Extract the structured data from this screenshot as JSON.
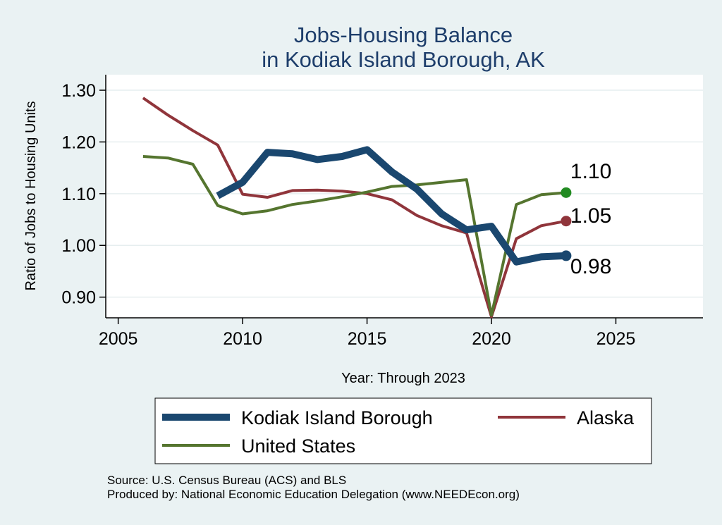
{
  "chart_data": {
    "type": "line",
    "title": [
      "Jobs-Housing Balance",
      "in Kodiak Island Borough, AK"
    ],
    "xlabel": "Year: Through 2023",
    "ylabel": "Ratio of Jobs to Housing Units",
    "xlim": [
      2004.5,
      2028.5
    ],
    "ylim": [
      0.86,
      1.33
    ],
    "xticks": [
      2005,
      2010,
      2015,
      2020,
      2025
    ],
    "yticks": [
      0.9,
      1.0,
      1.1,
      1.2,
      1.3
    ],
    "ytick_labels": [
      "0.90",
      "1.00",
      "1.10",
      "1.20",
      "1.30"
    ],
    "grid": true,
    "legend_position": "bottom",
    "series": [
      {
        "name": "Kodiak Island Borough",
        "color": "#1a476f",
        "x": [
          2009,
          2010,
          2011,
          2012,
          2013,
          2014,
          2015,
          2016,
          2017,
          2018,
          2019,
          2020,
          2021,
          2022,
          2023
        ],
        "y": [
          1.096,
          1.122,
          1.18,
          1.177,
          1.166,
          1.172,
          1.185,
          1.142,
          1.109,
          1.061,
          1.03,
          1.037,
          0.968,
          0.978,
          0.98
        ],
        "end_label": "0.98"
      },
      {
        "name": "Alaska",
        "color": "#90353b",
        "x": [
          2006,
          2007,
          2008,
          2009,
          2010,
          2011,
          2012,
          2013,
          2014,
          2015,
          2016,
          2017,
          2018,
          2019,
          2020,
          2021,
          2022,
          2023
        ],
        "y": [
          1.285,
          1.252,
          1.222,
          1.194,
          1.099,
          1.093,
          1.106,
          1.107,
          1.105,
          1.1,
          1.088,
          1.058,
          1.038,
          1.024,
          0.862,
          1.013,
          1.038,
          1.047
        ],
        "end_label": "1.05"
      },
      {
        "name": "United States",
        "color": "#55752f",
        "x": [
          2006,
          2007,
          2008,
          2009,
          2010,
          2011,
          2012,
          2013,
          2014,
          2015,
          2016,
          2017,
          2018,
          2019,
          2020,
          2021,
          2022,
          2023
        ],
        "y": [
          1.172,
          1.169,
          1.157,
          1.077,
          1.061,
          1.067,
          1.079,
          1.086,
          1.094,
          1.103,
          1.114,
          1.117,
          1.122,
          1.127,
          0.865,
          1.079,
          1.098,
          1.102
        ],
        "end_label": "1.10"
      }
    ],
    "end_markers": [
      {
        "series": 0,
        "color": "#1a476f"
      },
      {
        "series": 1,
        "color": "#90353b"
      },
      {
        "series": 2,
        "color": "#228b22"
      }
    ]
  },
  "footer": {
    "source": "Source: U.S. Census Bureau (ACS) and BLS",
    "produced": "Produced by: National Economic Education Delegation (www.NEEDEcon.org)"
  }
}
